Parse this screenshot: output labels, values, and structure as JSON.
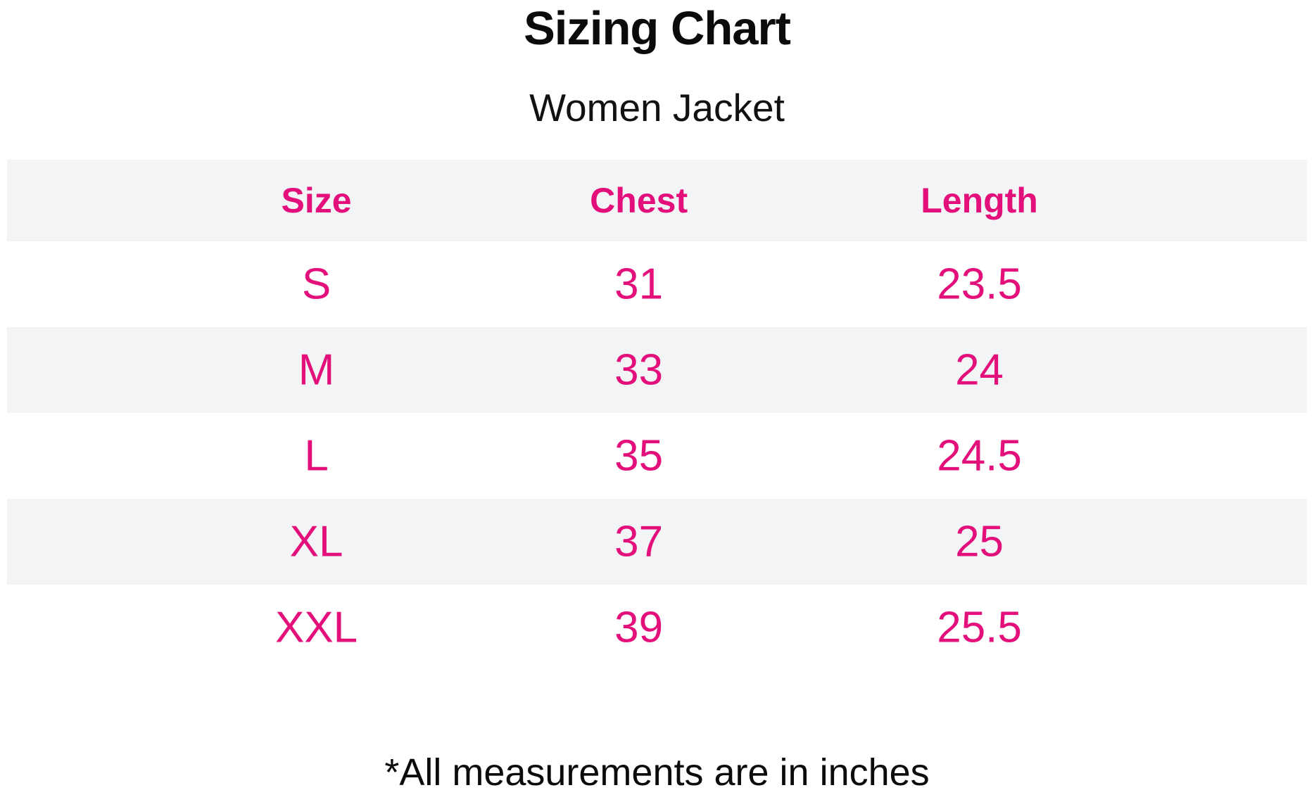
{
  "page": {
    "title": "Sizing Chart",
    "subtitle": "Women Jacket",
    "footnote": "*All measurements are in inches"
  },
  "colors": {
    "accent_pink": "#e30f7b",
    "band_gray": "#f3f4f6",
    "text_black": "#0b0b0b",
    "background": "#ffffff"
  },
  "table": {
    "columns": [
      "Size",
      "Chest",
      "Length"
    ],
    "rows": [
      {
        "size": "S",
        "chest": "31",
        "length": "23.5"
      },
      {
        "size": "M",
        "chest": "33",
        "length": "24"
      },
      {
        "size": "L",
        "chest": "35",
        "length": "24.5"
      },
      {
        "size": "XL",
        "chest": "37",
        "length": "25"
      },
      {
        "size": "XXL",
        "chest": "39",
        "length": "25.5"
      }
    ]
  },
  "chart_data": {
    "type": "table",
    "title": "Sizing Chart",
    "subtitle": "Women Jacket",
    "columns": [
      "Size",
      "Chest",
      "Length"
    ],
    "rows": [
      [
        "S",
        31,
        23.5
      ],
      [
        "M",
        33,
        24
      ],
      [
        "L",
        35,
        24.5
      ],
      [
        "XL",
        37,
        25
      ],
      [
        "XXL",
        39,
        25.5
      ]
    ],
    "units": "inches",
    "note": "*All measurements are in inches",
    "layout": {
      "header_background": "#f3f4f6",
      "alternating_rows": [
        "M",
        "XL"
      ],
      "text_color_values": "#e30f7b",
      "grid": false
    }
  }
}
